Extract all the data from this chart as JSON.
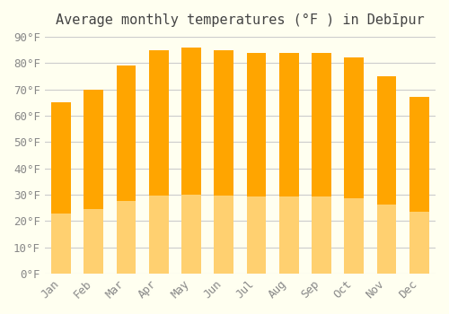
{
  "title": "Average monthly temperatures (°F ) in Debīpur",
  "months": [
    "Jan",
    "Feb",
    "Mar",
    "Apr",
    "May",
    "Jun",
    "Jul",
    "Aug",
    "Sep",
    "Oct",
    "Nov",
    "Dec"
  ],
  "values": [
    65,
    70,
    79,
    85,
    86,
    85,
    84,
    84,
    84,
    82,
    75,
    67
  ],
  "bar_color_top": "#FFA500",
  "bar_color_bottom": "#FFD070",
  "ylim": [
    0,
    90
  ],
  "yticks": [
    0,
    10,
    20,
    30,
    40,
    50,
    60,
    70,
    80,
    90
  ],
  "ylabel_suffix": "°F",
  "bg_color": "#FFFFF0",
  "grid_color": "#CCCCCC",
  "title_fontsize": 11,
  "tick_fontsize": 9,
  "font_family": "monospace"
}
